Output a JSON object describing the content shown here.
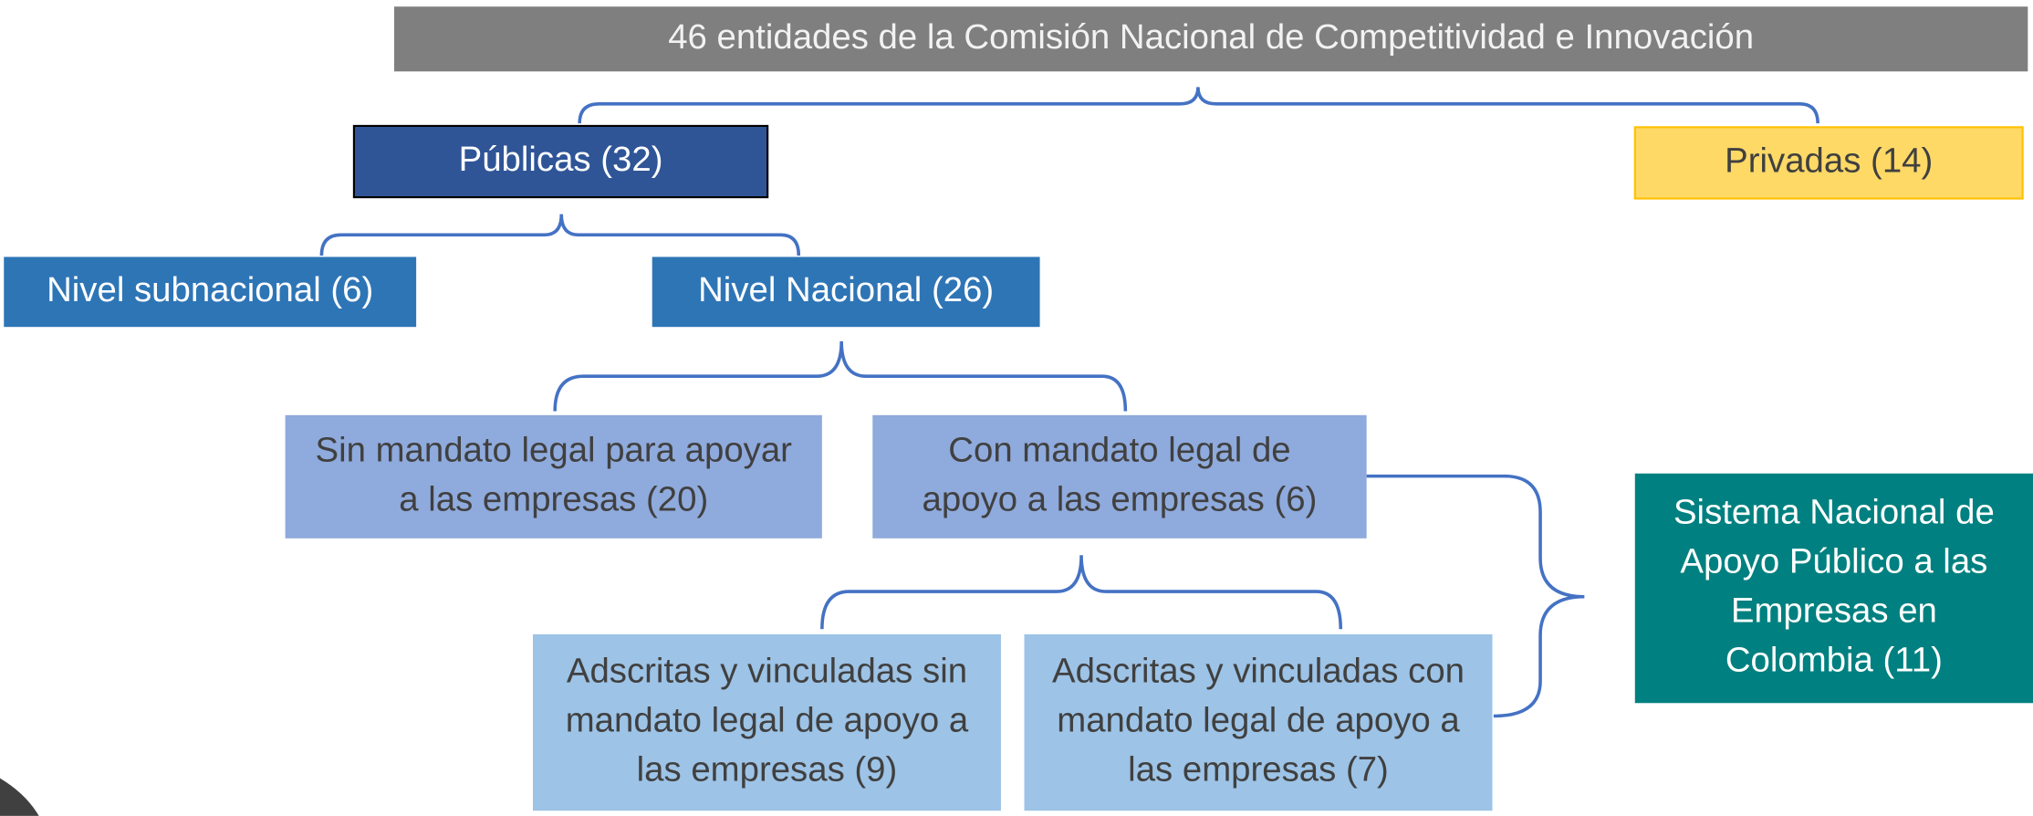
{
  "nodes": [
    {
      "lines": [
        "46 entidades de la Comisión Nacional de Competitividad e Innovación"
      ]
    },
    {
      "lines": [
        "Públicas (32)"
      ]
    },
    {
      "lines": [
        "Privadas (14)"
      ]
    },
    {
      "lines": [
        "Nivel subnacional (6)"
      ]
    },
    {
      "lines": [
        "Nivel Nacional (26)"
      ]
    },
    {
      "lines": [
        "Sin mandato legal para apoyar",
        "a las empresas (20)"
      ]
    },
    {
      "lines": [
        "Con mandato legal de",
        "apoyo a las empresas (6)"
      ]
    },
    {
      "lines": [
        "Adscritas y vinculadas sin",
        "mandato legal de apoyo a",
        "las empresas (9)"
      ]
    },
    {
      "lines": [
        "Adscritas y vinculadas con",
        "mandato legal de apoyo a",
        "las empresas (7)"
      ]
    },
    {
      "lines": [
        "Sistema Nacional de",
        "Apoyo Público a las",
        "Empresas en",
        "Colombia (11)"
      ]
    }
  ]
}
